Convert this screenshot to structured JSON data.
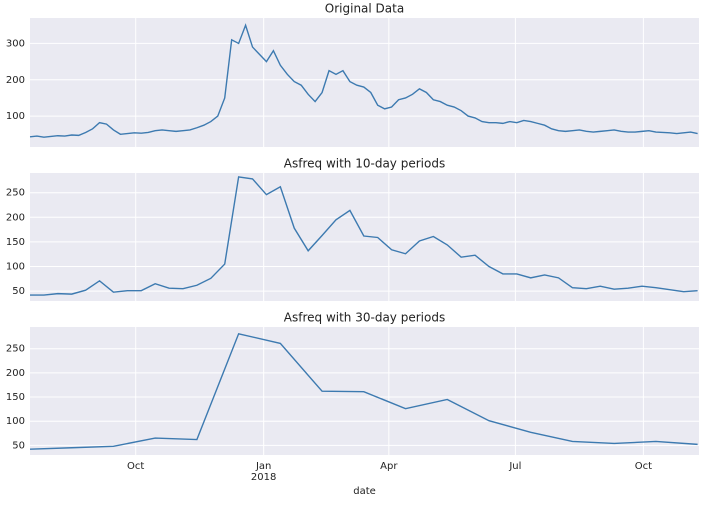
{
  "chart_data": [
    {
      "type": "line",
      "title": "Original Data",
      "color": "#3d7ab0",
      "grid": true,
      "ylim": [
        15,
        370
      ],
      "yticks": [
        100,
        200,
        300
      ],
      "xlim": [
        -76,
        405
      ],
      "x": [
        -76,
        -71,
        -66,
        -61,
        -56,
        -51,
        -46,
        -41,
        -36,
        -31,
        -26,
        -21,
        -16,
        -11,
        -6,
        -1,
        4,
        9,
        14,
        19,
        24,
        29,
        34,
        39,
        44,
        49,
        54,
        59,
        64,
        69,
        74,
        79,
        84,
        89,
        94,
        99,
        104,
        109,
        114,
        119,
        124,
        129,
        134,
        139,
        144,
        149,
        154,
        159,
        164,
        169,
        174,
        179,
        184,
        189,
        194,
        199,
        204,
        209,
        214,
        219,
        224,
        229,
        234,
        239,
        244,
        249,
        254,
        259,
        264,
        269,
        274,
        279,
        284,
        289,
        294,
        299,
        304,
        309,
        314,
        319,
        324,
        329,
        334,
        339,
        344,
        349,
        354,
        359,
        364,
        369,
        374,
        379,
        384,
        389,
        394,
        399,
        404
      ],
      "values": [
        43,
        45,
        42,
        44,
        46,
        45,
        48,
        47,
        55,
        65,
        82,
        78,
        62,
        50,
        52,
        54,
        53,
        55,
        60,
        62,
        60,
        58,
        60,
        62,
        68,
        75,
        85,
        100,
        150,
        310,
        300,
        350,
        290,
        270,
        250,
        280,
        240,
        215,
        195,
        185,
        160,
        140,
        165,
        225,
        215,
        225,
        195,
        185,
        180,
        165,
        130,
        120,
        125,
        145,
        150,
        160,
        175,
        165,
        145,
        140,
        130,
        125,
        115,
        100,
        95,
        85,
        82,
        82,
        80,
        85,
        82,
        88,
        85,
        80,
        75,
        65,
        60,
        58,
        60,
        62,
        58,
        56,
        58,
        60,
        62,
        58,
        56,
        56,
        58,
        60,
        56,
        55,
        54,
        52,
        54,
        56,
        52
      ]
    },
    {
      "type": "line",
      "title": "Asfreq with 10-day periods",
      "color": "#3d7ab0",
      "grid": true,
      "ylim": [
        30,
        290
      ],
      "yticks": [
        50,
        100,
        150,
        200,
        250
      ],
      "xlim": [
        -76,
        405
      ],
      "x": [
        -76,
        -66,
        -56,
        -46,
        -36,
        -26,
        -16,
        -6,
        4,
        14,
        24,
        34,
        44,
        54,
        64,
        74,
        84,
        94,
        104,
        114,
        124,
        134,
        144,
        154,
        164,
        174,
        184,
        194,
        204,
        214,
        224,
        234,
        244,
        254,
        264,
        274,
        284,
        294,
        304,
        314,
        324,
        334,
        344,
        354,
        364,
        374,
        384,
        394,
        404
      ],
      "values": [
        42,
        42,
        45,
        44,
        52,
        71,
        48,
        51,
        51,
        65,
        56,
        55,
        62,
        76,
        105,
        282,
        278,
        246,
        262,
        178,
        132,
        163,
        195,
        214,
        162,
        159,
        134,
        126,
        152,
        161,
        144,
        119,
        123,
        100,
        85,
        85,
        77,
        83,
        77,
        57,
        55,
        60,
        54,
        56,
        60,
        57,
        53,
        49,
        51
      ]
    },
    {
      "type": "line",
      "title": "Asfreq with 30-day periods",
      "color": "#3d7ab0",
      "grid": true,
      "ylim": [
        30,
        295
      ],
      "yticks": [
        50,
        100,
        150,
        200,
        250
      ],
      "xlim": [
        -76,
        405
      ],
      "xticks": [
        {
          "value": 0,
          "label": "Oct"
        },
        {
          "value": 92,
          "label": "Jan"
        },
        {
          "value": 182,
          "label": "Apr"
        },
        {
          "value": 273,
          "label": "Jul"
        },
        {
          "value": 365,
          "label": "Oct"
        }
      ],
      "xtick_sublabels": [
        {
          "value": 92,
          "label": "2018"
        }
      ],
      "xlabel": "date",
      "x": [
        -76,
        -46,
        -16,
        14,
        44,
        74,
        104,
        134,
        164,
        194,
        224,
        254,
        284,
        314,
        344,
        374,
        404
      ],
      "values": [
        42,
        45,
        48,
        65,
        62,
        281,
        261,
        162,
        161,
        126,
        145,
        101,
        77,
        58,
        54,
        58,
        52
      ]
    }
  ]
}
